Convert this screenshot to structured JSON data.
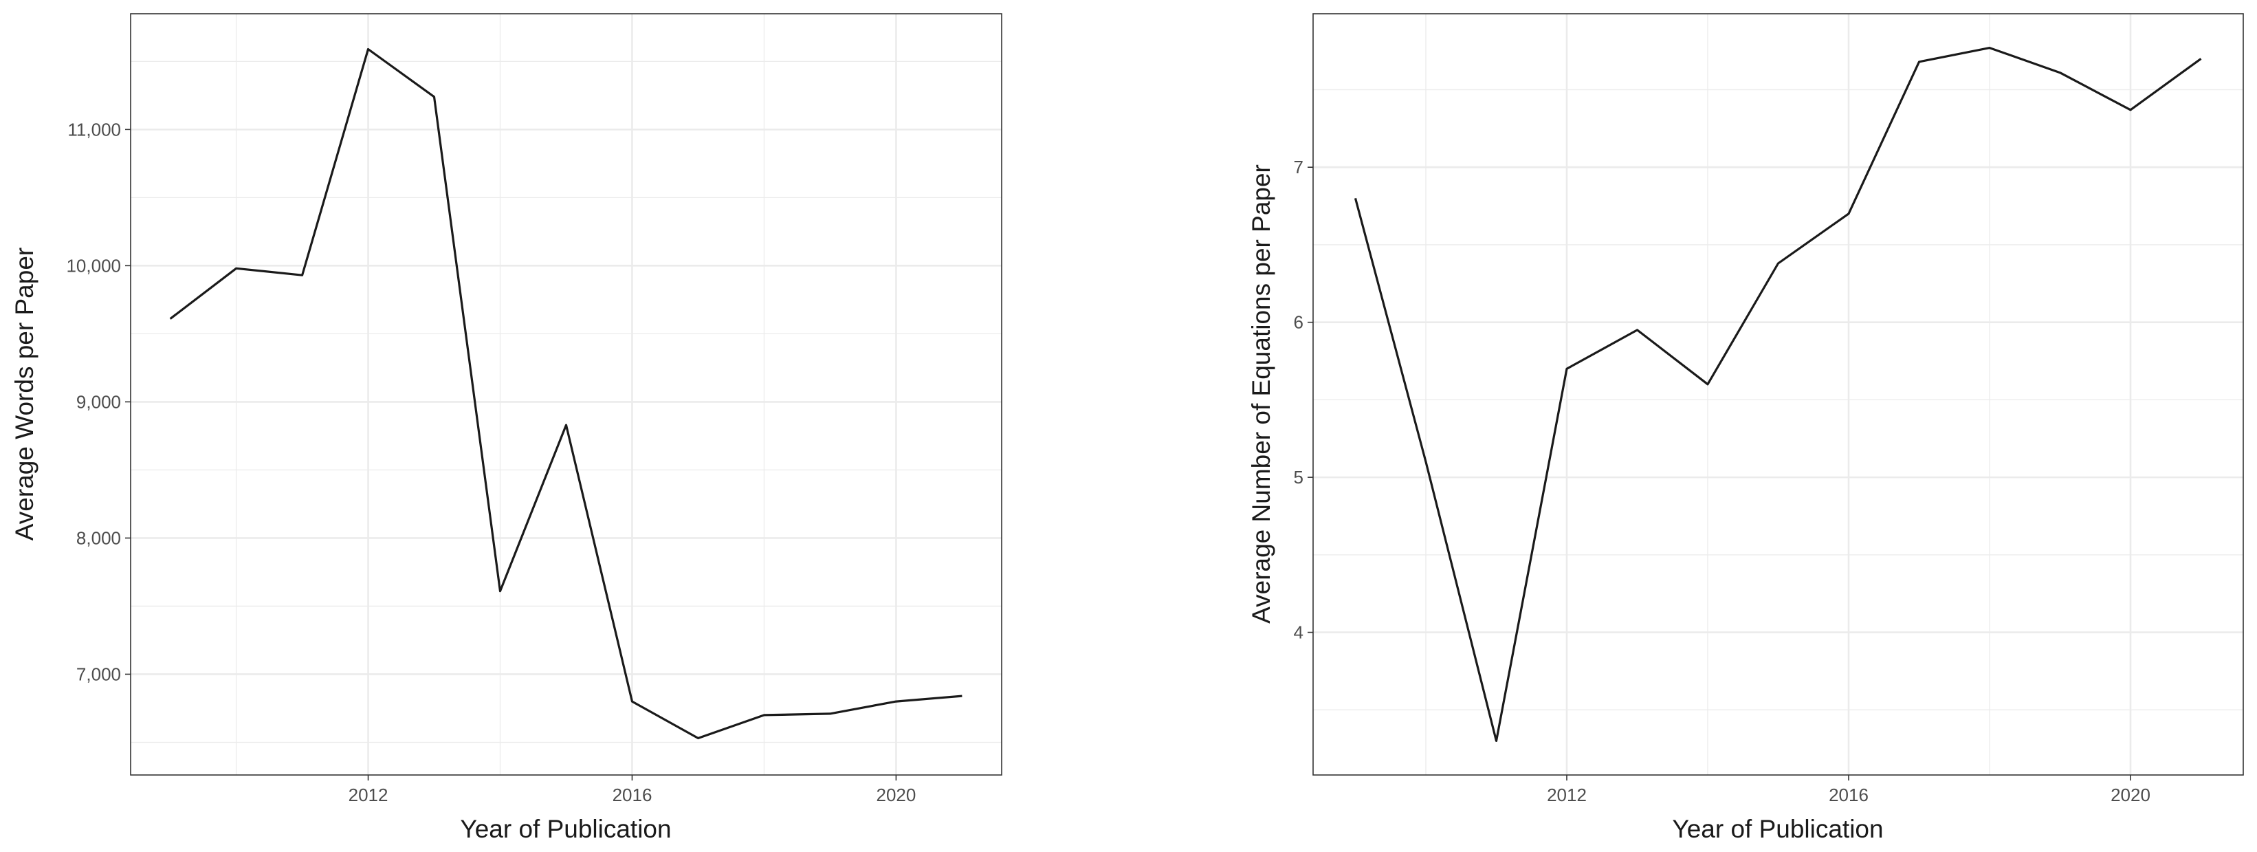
{
  "chart_data": [
    {
      "type": "line",
      "title": "",
      "xlabel": "Year of Publication",
      "ylabel": "Average Words per Paper",
      "x": [
        2009,
        2010,
        2011,
        2012,
        2013,
        2014,
        2015,
        2016,
        2017,
        2018,
        2019,
        2020,
        2021
      ],
      "values": [
        9610,
        9980,
        9930,
        11590,
        11240,
        7610,
        8830,
        6800,
        6530,
        6700,
        6710,
        6800,
        6840
      ],
      "xlim": [
        2008.4,
        2021.6
      ],
      "ylim": [
        6260,
        11850
      ],
      "xticks": [
        2012,
        2016,
        2020
      ],
      "xtick_labels": [
        "2012",
        "2016",
        "2020"
      ],
      "yticks": [
        7000,
        8000,
        9000,
        10000,
        11000
      ],
      "ytick_labels": [
        "7,000",
        "8,000",
        "9,000",
        "10,000",
        "11,000"
      ],
      "grid": true,
      "theme": "bw",
      "line_color": "#1a1a1a",
      "grid_color": "#ebebeb",
      "panel_border_color": "#333333"
    },
    {
      "type": "line",
      "title": "",
      "xlabel": "Year of Publication",
      "ylabel": "Average Number of Equations per Paper",
      "x": [
        2009,
        2010,
        2011,
        2012,
        2013,
        2014,
        2015,
        2016,
        2017,
        2018,
        2019,
        2020,
        2021
      ],
      "values": [
        6.8,
        5.1,
        3.3,
        5.7,
        5.95,
        5.6,
        6.38,
        6.7,
        7.68,
        7.77,
        7.61,
        7.37,
        7.7
      ],
      "xlim": [
        2008.4,
        2021.6
      ],
      "ylim": [
        3.08,
        7.99
      ],
      "xticks": [
        2012,
        2016,
        2020
      ],
      "xtick_labels": [
        "2012",
        "2016",
        "2020"
      ],
      "yticks": [
        4,
        5,
        6,
        7
      ],
      "ytick_labels": [
        "4",
        "5",
        "6",
        "7"
      ],
      "grid": true,
      "theme": "bw",
      "line_color": "#1a1a1a",
      "grid_color": "#ebebeb",
      "panel_border_color": "#333333"
    }
  ]
}
